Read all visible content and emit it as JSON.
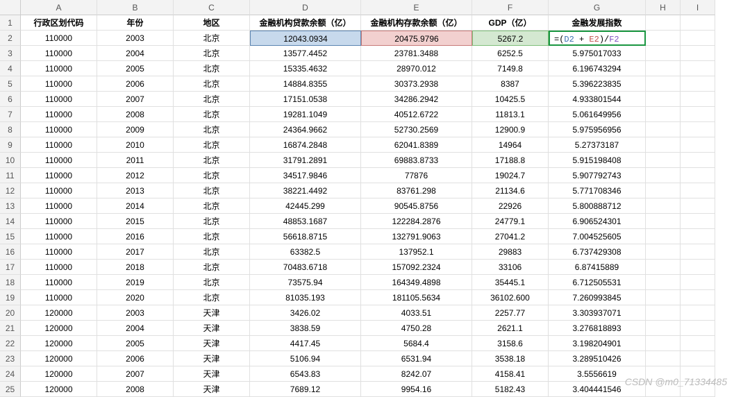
{
  "columns": [
    "",
    "A",
    "B",
    "C",
    "D",
    "E",
    "F",
    "G",
    "H",
    "I"
  ],
  "headers": [
    "行政区划代码",
    "年份",
    "地区",
    "金融机构贷款余额（亿）",
    "金融机构存款余额（亿）",
    "GDP（亿）",
    "金融发展指数"
  ],
  "formula": {
    "prefix": "=(",
    "d": "D2",
    "plus": " + ",
    "e": "E2",
    "mid": ")/",
    "f": "F2"
  },
  "rows": [
    {
      "n": 2,
      "a": "110000",
      "b": "2003",
      "c": "北京",
      "d": "12043.0934",
      "e": "20475.9796",
      "f": "5267.2",
      "g": "__FORMULA__"
    },
    {
      "n": 3,
      "a": "110000",
      "b": "2004",
      "c": "北京",
      "d": "13577.4452",
      "e": "23781.3488",
      "f": "6252.5",
      "g": "5.975017033"
    },
    {
      "n": 4,
      "a": "110000",
      "b": "2005",
      "c": "北京",
      "d": "15335.4632",
      "e": "28970.012",
      "f": "7149.8",
      "g": "6.196743294"
    },
    {
      "n": 5,
      "a": "110000",
      "b": "2006",
      "c": "北京",
      "d": "14884.8355",
      "e": "30373.2938",
      "f": "8387",
      "g": "5.396223835"
    },
    {
      "n": 6,
      "a": "110000",
      "b": "2007",
      "c": "北京",
      "d": "17151.0538",
      "e": "34286.2942",
      "f": "10425.5",
      "g": "4.933801544"
    },
    {
      "n": 7,
      "a": "110000",
      "b": "2008",
      "c": "北京",
      "d": "19281.1049",
      "e": "40512.6722",
      "f": "11813.1",
      "g": "5.061649956"
    },
    {
      "n": 8,
      "a": "110000",
      "b": "2009",
      "c": "北京",
      "d": "24364.9662",
      "e": "52730.2569",
      "f": "12900.9",
      "g": "5.975956956"
    },
    {
      "n": 9,
      "a": "110000",
      "b": "2010",
      "c": "北京",
      "d": "16874.2848",
      "e": "62041.8389",
      "f": "14964",
      "g": "5.27373187"
    },
    {
      "n": 10,
      "a": "110000",
      "b": "2011",
      "c": "北京",
      "d": "31791.2891",
      "e": "69883.8733",
      "f": "17188.8",
      "g": "5.915198408"
    },
    {
      "n": 11,
      "a": "110000",
      "b": "2012",
      "c": "北京",
      "d": "34517.9846",
      "e": "77876",
      "f": "19024.7",
      "g": "5.907792743"
    },
    {
      "n": 12,
      "a": "110000",
      "b": "2013",
      "c": "北京",
      "d": "38221.4492",
      "e": "83761.298",
      "f": "21134.6",
      "g": "5.771708346"
    },
    {
      "n": 13,
      "a": "110000",
      "b": "2014",
      "c": "北京",
      "d": "42445.299",
      "e": "90545.8756",
      "f": "22926",
      "g": "5.800888712"
    },
    {
      "n": 14,
      "a": "110000",
      "b": "2015",
      "c": "北京",
      "d": "48853.1687",
      "e": "122284.2876",
      "f": "24779.1",
      "g": "6.906524301"
    },
    {
      "n": 15,
      "a": "110000",
      "b": "2016",
      "c": "北京",
      "d": "56618.8715",
      "e": "132791.9063",
      "f": "27041.2",
      "g": "7.004525605"
    },
    {
      "n": 16,
      "a": "110000",
      "b": "2017",
      "c": "北京",
      "d": "63382.5",
      "e": "137952.1",
      "f": "29883",
      "g": "6.737429308"
    },
    {
      "n": 17,
      "a": "110000",
      "b": "2018",
      "c": "北京",
      "d": "70483.6718",
      "e": "157092.2324",
      "f": "33106",
      "g": "6.87415889"
    },
    {
      "n": 18,
      "a": "110000",
      "b": "2019",
      "c": "北京",
      "d": "73575.94",
      "e": "164349.4898",
      "f": "35445.1",
      "g": "6.712505531"
    },
    {
      "n": 19,
      "a": "110000",
      "b": "2020",
      "c": "北京",
      "d": "81035.193",
      "e": "181105.5634",
      "f": "36102.600",
      "g": "7.260993845"
    },
    {
      "n": 20,
      "a": "120000",
      "b": "2003",
      "c": "天津",
      "d": "3426.02",
      "e": "4033.51",
      "f": "2257.77",
      "g": "3.303937071"
    },
    {
      "n": 21,
      "a": "120000",
      "b": "2004",
      "c": "天津",
      "d": "3838.59",
      "e": "4750.28",
      "f": "2621.1",
      "g": "3.276818893"
    },
    {
      "n": 22,
      "a": "120000",
      "b": "2005",
      "c": "天津",
      "d": "4417.45",
      "e": "5684.4",
      "f": "3158.6",
      "g": "3.198204901"
    },
    {
      "n": 23,
      "a": "120000",
      "b": "2006",
      "c": "天津",
      "d": "5106.94",
      "e": "6531.94",
      "f": "3538.18",
      "g": "3.289510426"
    },
    {
      "n": 24,
      "a": "120000",
      "b": "2007",
      "c": "天津",
      "d": "6543.83",
      "e": "8242.07",
      "f": "4158.41",
      "g": "3.5556619"
    },
    {
      "n": 25,
      "a": "120000",
      "b": "2008",
      "c": "天津",
      "d": "7689.12",
      "e": "9954.16",
      "f": "5182.43",
      "g": "3.404441546"
    }
  ],
  "watermark": "CSDN @m0_71334485"
}
